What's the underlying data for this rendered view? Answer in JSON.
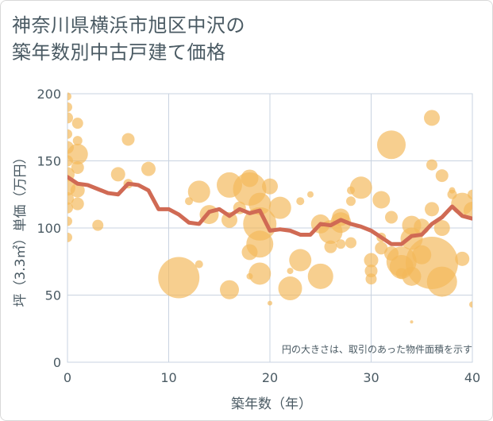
{
  "title_line1": "神奈川県横浜市旭区中沢の",
  "title_line2": "築年数別中古戸建て価格",
  "chart_data": {
    "type": "scatter",
    "xlabel": "築年数（年）",
    "ylabel": "坪（3.3㎡）単価（万円）",
    "xlim": [
      0,
      40
    ],
    "ylim": [
      0,
      200
    ],
    "xticks": [
      0,
      10,
      20,
      30,
      40
    ],
    "yticks": [
      0,
      50,
      100,
      150,
      200
    ],
    "grid": true,
    "note": "円の大きさは、取引のあった物件面積を示す",
    "colors": {
      "bubble": "#f3b85a",
      "line": "#d06a54",
      "grid": "#c9d3e0",
      "text": "#4a5a63"
    },
    "bubbles": [
      {
        "x": 0,
        "y": 198,
        "s": 5
      },
      {
        "x": 0,
        "y": 190,
        "s": 6
      },
      {
        "x": 0,
        "y": 182,
        "s": 7
      },
      {
        "x": 0,
        "y": 170,
        "s": 6
      },
      {
        "x": 0,
        "y": 160,
        "s": 8
      },
      {
        "x": 0,
        "y": 150,
        "s": 7
      },
      {
        "x": 0,
        "y": 140,
        "s": 9
      },
      {
        "x": 0,
        "y": 130,
        "s": 10
      },
      {
        "x": 0,
        "y": 122,
        "s": 8
      },
      {
        "x": 0,
        "y": 115,
        "s": 7
      },
      {
        "x": 0,
        "y": 105,
        "s": 6
      },
      {
        "x": 0,
        "y": 93,
        "s": 6
      },
      {
        "x": 1,
        "y": 178,
        "s": 7
      },
      {
        "x": 1,
        "y": 155,
        "s": 13
      },
      {
        "x": 1,
        "y": 145,
        "s": 8
      },
      {
        "x": 1,
        "y": 128,
        "s": 9
      },
      {
        "x": 1,
        "y": 118,
        "s": 8
      },
      {
        "x": 1,
        "y": 165,
        "s": 6
      },
      {
        "x": 3,
        "y": 102,
        "s": 7
      },
      {
        "x": 5,
        "y": 140,
        "s": 9
      },
      {
        "x": 6,
        "y": 166,
        "s": 8
      },
      {
        "x": 6,
        "y": 133,
        "s": 6
      },
      {
        "x": 8,
        "y": 144,
        "s": 9
      },
      {
        "x": 11,
        "y": 63,
        "s": 26
      },
      {
        "x": 12,
        "y": 120,
        "s": 5
      },
      {
        "x": 13,
        "y": 127,
        "s": 14
      },
      {
        "x": 13,
        "y": 73,
        "s": 5
      },
      {
        "x": 14,
        "y": 110,
        "s": 12
      },
      {
        "x": 16,
        "y": 132,
        "s": 16
      },
      {
        "x": 16,
        "y": 106,
        "s": 10
      },
      {
        "x": 16,
        "y": 54,
        "s": 12
      },
      {
        "x": 17,
        "y": 115,
        "s": 8
      },
      {
        "x": 18,
        "y": 137,
        "s": 11
      },
      {
        "x": 18,
        "y": 129,
        "s": 21
      },
      {
        "x": 18,
        "y": 82,
        "s": 10
      },
      {
        "x": 18,
        "y": 64,
        "s": 4
      },
      {
        "x": 19,
        "y": 118,
        "s": 14
      },
      {
        "x": 19,
        "y": 103,
        "s": 21
      },
      {
        "x": 19,
        "y": 88,
        "s": 17
      },
      {
        "x": 19,
        "y": 66,
        "s": 14
      },
      {
        "x": 20,
        "y": 131,
        "s": 10
      },
      {
        "x": 20,
        "y": 44,
        "s": 3
      },
      {
        "x": 21,
        "y": 115,
        "s": 14
      },
      {
        "x": 22,
        "y": 55,
        "s": 15
      },
      {
        "x": 22,
        "y": 68,
        "s": 4
      },
      {
        "x": 23,
        "y": 76,
        "s": 14
      },
      {
        "x": 23,
        "y": 120,
        "s": 5
      },
      {
        "x": 24,
        "y": 125,
        "s": 4
      },
      {
        "x": 25,
        "y": 64,
        "s": 16
      },
      {
        "x": 25,
        "y": 103,
        "s": 12
      },
      {
        "x": 26,
        "y": 97,
        "s": 15
      },
      {
        "x": 26,
        "y": 86,
        "s": 8
      },
      {
        "x": 27,
        "y": 108,
        "s": 11
      },
      {
        "x": 27,
        "y": 104,
        "s": 13
      },
      {
        "x": 27,
        "y": 88,
        "s": 6
      },
      {
        "x": 28,
        "y": 120,
        "s": 6
      },
      {
        "x": 28,
        "y": 128,
        "s": 5
      },
      {
        "x": 28,
        "y": 89,
        "s": 7
      },
      {
        "x": 29,
        "y": 130,
        "s": 14
      },
      {
        "x": 30,
        "y": 76,
        "s": 9
      },
      {
        "x": 30,
        "y": 68,
        "s": 8
      },
      {
        "x": 30,
        "y": 62,
        "s": 7
      },
      {
        "x": 31,
        "y": 121,
        "s": 11
      },
      {
        "x": 31,
        "y": 85,
        "s": 8
      },
      {
        "x": 31,
        "y": 93,
        "s": 6
      },
      {
        "x": 32,
        "y": 162,
        "s": 18
      },
      {
        "x": 32,
        "y": 108,
        "s": 8
      },
      {
        "x": 32,
        "y": 81,
        "s": 9
      },
      {
        "x": 33,
        "y": 75,
        "s": 19
      },
      {
        "x": 33,
        "y": 71,
        "s": 15
      },
      {
        "x": 33,
        "y": 66,
        "s": 7
      },
      {
        "x": 34,
        "y": 102,
        "s": 12
      },
      {
        "x": 34,
        "y": 92,
        "s": 14
      },
      {
        "x": 34,
        "y": 64,
        "s": 12
      },
      {
        "x": 34,
        "y": 30,
        "s": 2
      },
      {
        "x": 35,
        "y": 101,
        "s": 10
      },
      {
        "x": 35,
        "y": 80,
        "s": 12
      },
      {
        "x": 36,
        "y": 182,
        "s": 10
      },
      {
        "x": 36,
        "y": 147,
        "s": 7
      },
      {
        "x": 36,
        "y": 114,
        "s": 9
      },
      {
        "x": 36,
        "y": 74,
        "s": 33
      },
      {
        "x": 37,
        "y": 139,
        "s": 8
      },
      {
        "x": 37,
        "y": 100,
        "s": 10
      },
      {
        "x": 37,
        "y": 60,
        "s": 19
      },
      {
        "x": 38,
        "y": 128,
        "s": 4
      },
      {
        "x": 38,
        "y": 125,
        "s": 6
      },
      {
        "x": 39,
        "y": 118,
        "s": 14
      },
      {
        "x": 39,
        "y": 77,
        "s": 9
      },
      {
        "x": 40,
        "y": 125,
        "s": 6
      },
      {
        "x": 40,
        "y": 113,
        "s": 11
      },
      {
        "x": 40,
        "y": 43,
        "s": 4
      }
    ],
    "trend_line": {
      "x": [
        0,
        1,
        2,
        3,
        4,
        5,
        6,
        7,
        8,
        9,
        10,
        11,
        12,
        13,
        14,
        15,
        16,
        17,
        18,
        19,
        20,
        21,
        22,
        23,
        24,
        25,
        26,
        27,
        28,
        29,
        30,
        31,
        32,
        33,
        34,
        35,
        36,
        37,
        38,
        39,
        40
      ],
      "y": [
        138,
        133,
        132,
        129,
        126,
        125,
        133,
        132,
        128,
        114,
        114,
        110,
        104,
        103,
        112,
        114,
        109,
        114,
        111,
        113,
        98,
        99,
        98,
        95,
        95,
        103,
        102,
        106,
        103,
        101,
        98,
        93,
        88,
        88,
        94,
        95,
        103,
        108,
        116,
        109,
        107
      ]
    }
  }
}
